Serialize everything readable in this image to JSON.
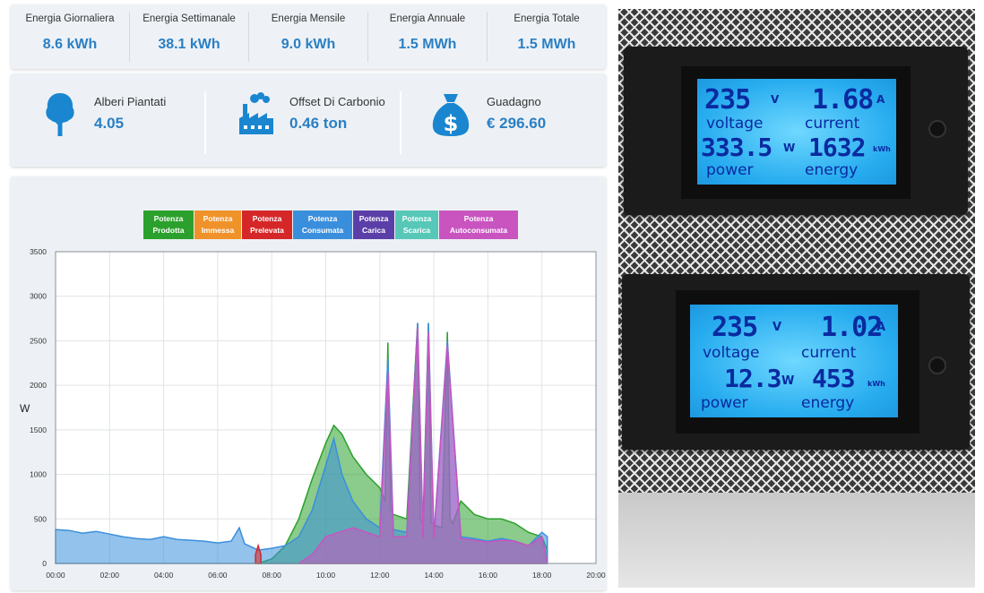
{
  "energy": [
    {
      "label": "Energia Giornaliera",
      "value": "8.6 kWh"
    },
    {
      "label": "Energia Settimanale",
      "value": "38.1 kWh"
    },
    {
      "label": "Energia Mensile",
      "value": "9.0 kWh"
    },
    {
      "label": "Energia Annuale",
      "value": "1.5 MWh"
    },
    {
      "label": "Energia Totale",
      "value": "1.5 MWh"
    }
  ],
  "impact": [
    {
      "label": "Alberi Piantati",
      "value": "4.05",
      "icon": "tree-icon"
    },
    {
      "label": "Offset Di Carbonio",
      "value": "0.46 ton",
      "icon": "factory-icon"
    },
    {
      "label": "Guadagno",
      "value": "€ 296.60",
      "icon": "money-bag-icon"
    }
  ],
  "colors": {
    "accent": "#2a7fc4",
    "icon": "#1a86d0"
  },
  "chart_data": {
    "type": "area",
    "ylabel": "W",
    "xlim": [
      "00:00",
      "20:00"
    ],
    "ylim": [
      0,
      3500
    ],
    "x_ticks": [
      "00:00",
      "02:00",
      "04:00",
      "06:00",
      "08:00",
      "10:00",
      "12:00",
      "14:00",
      "16:00",
      "18:00",
      "20:00"
    ],
    "y_ticks": [
      "0",
      "500",
      "1000",
      "1500",
      "2000",
      "2500",
      "3000",
      "3500"
    ],
    "grid": true,
    "legend_position": "top-center",
    "series": [
      {
        "name": "Potenza Prodotta",
        "line1": "Potenza",
        "line2": "Prodotta",
        "color": "#2ca02c",
        "x": [
          7.5,
          8.0,
          8.5,
          9.0,
          9.5,
          10.0,
          10.3,
          10.6,
          11.0,
          11.5,
          12.0,
          12.2,
          12.3,
          12.4,
          12.5,
          13.0,
          13.4,
          13.5,
          13.6,
          13.8,
          13.9,
          14.0,
          14.1,
          14.3,
          14.5,
          14.6,
          14.7,
          15.0,
          15.5,
          16.0,
          16.5,
          17.0,
          17.5,
          18.0,
          18.2
        ],
        "values": [
          0,
          50,
          200,
          500,
          950,
          1350,
          1550,
          1450,
          1200,
          1000,
          850,
          700,
          2480,
          600,
          550,
          500,
          2700,
          500,
          450,
          2700,
          450,
          450,
          420,
          400,
          2600,
          500,
          450,
          700,
          550,
          500,
          500,
          450,
          350,
          300,
          150
        ]
      },
      {
        "name": "Potenza Immessa",
        "line1": "Potenza",
        "line2": "Immessa",
        "color": "#f0922a",
        "x": [],
        "values": []
      },
      {
        "name": "Potenza Prelevata",
        "line1": "Potenza",
        "line2": "Prelevata",
        "color": "#d62728",
        "x": [
          7.4,
          7.5,
          7.6
        ],
        "values": [
          100,
          200,
          100
        ]
      },
      {
        "name": "Potenza Consumata",
        "line1": "Potenza",
        "line2": "Consumata",
        "color": "#3a8fdc",
        "x": [
          0.0,
          0.5,
          1.0,
          1.5,
          2.0,
          2.5,
          3.0,
          3.5,
          4.0,
          4.5,
          5.0,
          5.5,
          6.0,
          6.5,
          6.8,
          7.0,
          7.5,
          8.0,
          8.5,
          9.0,
          9.5,
          10.0,
          10.3,
          10.6,
          11.0,
          11.5,
          12.0,
          12.3,
          12.5,
          13.0,
          13.4,
          13.6,
          13.8,
          14.0,
          14.5,
          15.0,
          15.5,
          16.0,
          16.5,
          17.0,
          17.5,
          18.0,
          18.2
        ],
        "values": [
          380,
          370,
          340,
          360,
          330,
          300,
          280,
          270,
          300,
          270,
          260,
          250,
          230,
          250,
          400,
          220,
          150,
          170,
          200,
          300,
          600,
          1100,
          1400,
          1000,
          700,
          500,
          400,
          2300,
          380,
          350,
          2700,
          300,
          2700,
          300,
          2500,
          300,
          280,
          250,
          280,
          250,
          200,
          350,
          300
        ]
      },
      {
        "name": "Potenza Carica",
        "line1": "Potenza",
        "line2": "Carica",
        "color": "#5b3fa8",
        "x": [],
        "values": []
      },
      {
        "name": "Potenza Scarica",
        "line1": "Potenza",
        "line2": "Scarica",
        "color": "#57c8b8",
        "x": [],
        "values": []
      },
      {
        "name": "Potenza Autoconsumata",
        "line1": "Potenza",
        "line2": "Autoconsumata",
        "color": "#c954c0",
        "x": [
          9.0,
          9.5,
          10.0,
          10.5,
          11.0,
          11.5,
          12.0,
          12.3,
          12.5,
          13.0,
          13.4,
          13.6,
          13.8,
          14.0,
          14.5,
          15.0,
          15.5,
          16.0,
          16.5,
          17.0,
          17.5,
          18.0,
          18.2
        ],
        "values": [
          0,
          100,
          300,
          350,
          400,
          350,
          300,
          2150,
          300,
          300,
          2650,
          280,
          2600,
          280,
          2450,
          280,
          260,
          240,
          260,
          250,
          200,
          300,
          0
        ]
      }
    ]
  },
  "meters": [
    {
      "voltage": "235",
      "voltage_unit": "V",
      "current": "1.68",
      "current_unit": "A",
      "power": "333.5",
      "power_unit": "W",
      "energy": "1632",
      "energy_unit": "kWh",
      "label_voltage": "voltage",
      "label_current": "current",
      "label_power": "power",
      "label_energy": "energy"
    },
    {
      "voltage": "235",
      "voltage_unit": "V",
      "current": "1.02",
      "current_unit": "A",
      "power": "12.3",
      "power_unit": "W",
      "energy": "453",
      "energy_unit": "kWh",
      "label_voltage": "voltage",
      "label_current": "current",
      "label_power": "power",
      "label_energy": "energy"
    }
  ]
}
